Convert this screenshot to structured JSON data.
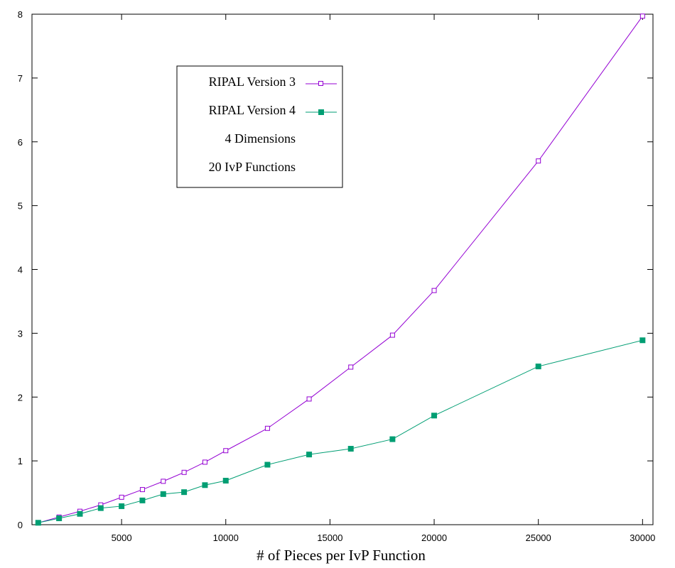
{
  "chart_data": {
    "type": "line",
    "xlabel": "# of Pieces per IvP Function",
    "ylabel": "",
    "xlim": [
      700,
      30500
    ],
    "ylim": [
      0,
      8
    ],
    "xticks": [
      5000,
      10000,
      15000,
      20000,
      25000,
      30000
    ],
    "yticks": [
      0,
      1,
      2,
      3,
      4,
      5,
      6,
      7,
      8
    ],
    "grid": false,
    "legend_position": "top-left",
    "x": [
      1000,
      2000,
      3000,
      4000,
      5000,
      6000,
      7000,
      8000,
      9000,
      10000,
      12000,
      14000,
      16000,
      18000,
      20000,
      25000,
      30000
    ],
    "series": [
      {
        "name": "RIPAL Version 3",
        "color": "#9400d3",
        "marker": "open-square",
        "values": [
          0.03,
          0.12,
          0.21,
          0.31,
          0.43,
          0.55,
          0.68,
          0.82,
          0.98,
          1.16,
          1.51,
          1.97,
          2.47,
          2.97,
          3.67,
          5.7,
          7.97
        ]
      },
      {
        "name": "RIPAL Version 4",
        "color": "#009e73",
        "marker": "filled-square",
        "values": [
          0.03,
          0.1,
          0.17,
          0.26,
          0.29,
          0.38,
          0.48,
          0.51,
          0.62,
          0.69,
          0.94,
          1.1,
          1.19,
          1.34,
          1.71,
          2.48,
          2.89
        ]
      }
    ],
    "annotations": [
      "4 Dimensions",
      "20 IvP Functions"
    ]
  }
}
